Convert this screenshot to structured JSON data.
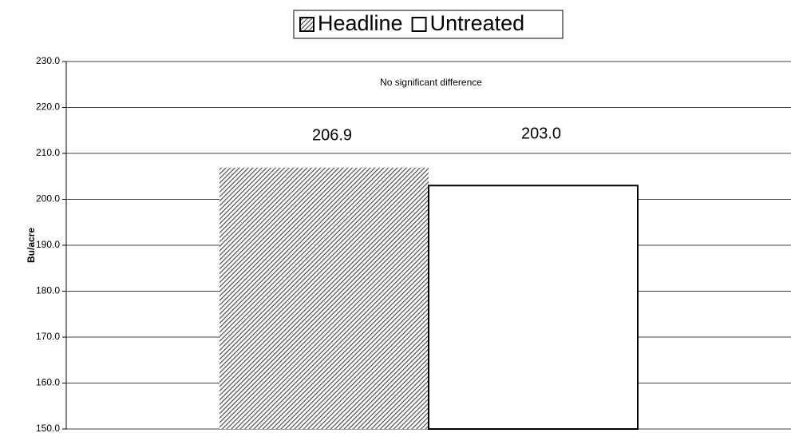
{
  "chart_data": {
    "type": "bar",
    "annotation": "No significant difference",
    "y_label": "Bu/acre",
    "categories": [
      null
    ],
    "series": [
      {
        "name": "Headline",
        "color": "#4d4d4d",
        "pattern": "hatch",
        "values": [
          206.9
        ],
        "value_labels": [
          "206.9"
        ]
      },
      {
        "name": "Untreated",
        "color": "#ffffff",
        "values": [
          203.0
        ],
        "value_labels": [
          "203.0"
        ]
      }
    ],
    "ylim": [
      150,
      230
    ],
    "yticks": [
      {
        "value": 150,
        "label": "150.0"
      },
      {
        "value": 160,
        "label": "160.0"
      },
      {
        "value": 170,
        "label": "170.0"
      },
      {
        "value": 180,
        "label": "180.0"
      },
      {
        "value": 190,
        "label": "190.0"
      },
      {
        "value": 200,
        "label": "200.0"
      },
      {
        "value": 210,
        "label": "210.0"
      },
      {
        "value": 220,
        "label": "220.0"
      },
      {
        "value": 230,
        "label": "230.0"
      }
    ],
    "grid": true,
    "legend": "top"
  }
}
